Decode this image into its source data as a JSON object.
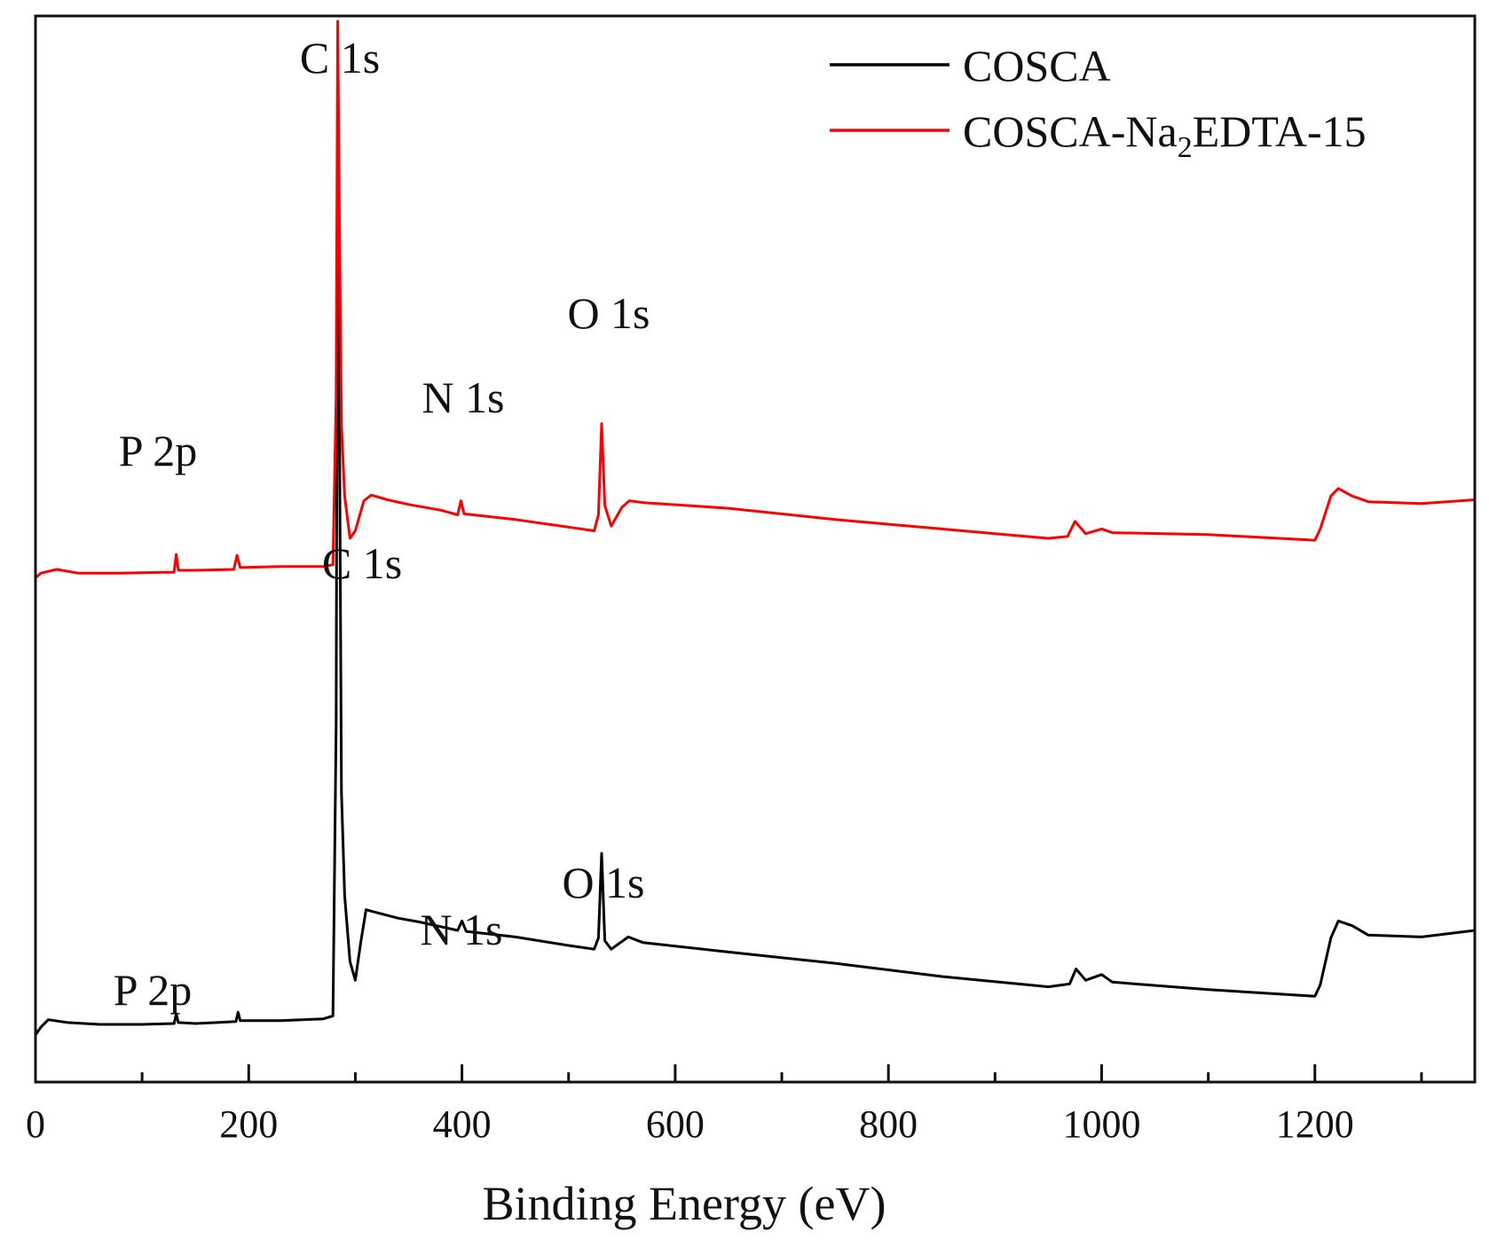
{
  "chart_data": {
    "type": "line",
    "title": "",
    "xlabel": "Binding Energy (eV)",
    "ylabel": "",
    "xlim": [
      0,
      1350
    ],
    "ylim": [
      0,
      100
    ],
    "x_ticks": [
      0,
      200,
      400,
      600,
      800,
      1000,
      1200
    ],
    "x_minor_ticks": [
      100,
      300,
      500,
      700,
      900,
      1100,
      1300
    ],
    "legend": {
      "position": "top-right",
      "entries": [
        {
          "name": "COSCA",
          "color": "#000000"
        },
        {
          "name_main": "COSCA-Na",
          "name_sub": "2",
          "name_rest": "EDTA-15",
          "color": "#ff0000"
        }
      ]
    },
    "series": [
      {
        "name": "COSCA",
        "color": "#000000",
        "points": [
          [
            0,
            2.2
          ],
          [
            5,
            3.0
          ],
          [
            12,
            3.8
          ],
          [
            30,
            3.5
          ],
          [
            60,
            3.3
          ],
          [
            100,
            3.3
          ],
          [
            130,
            3.4
          ],
          [
            132,
            4.4
          ],
          [
            134,
            3.5
          ],
          [
            150,
            3.4
          ],
          [
            188,
            3.6
          ],
          [
            190,
            4.6
          ],
          [
            192,
            3.7
          ],
          [
            230,
            3.7
          ],
          [
            270,
            3.9
          ],
          [
            279,
            4.2
          ],
          [
            282,
            35
          ],
          [
            283.5,
            96
          ],
          [
            285,
            70
          ],
          [
            287,
            28
          ],
          [
            290,
            17
          ],
          [
            295,
            10
          ],
          [
            300,
            8
          ],
          [
            305,
            12
          ],
          [
            310,
            15.5
          ],
          [
            320,
            15.2
          ],
          [
            340,
            14.6
          ],
          [
            360,
            14.2
          ],
          [
            380,
            13.7
          ],
          [
            396,
            13.3
          ],
          [
            400,
            14.3
          ],
          [
            404,
            13.2
          ],
          [
            450,
            12.6
          ],
          [
            500,
            11.7
          ],
          [
            524,
            11.3
          ],
          [
            528,
            12.5
          ],
          [
            531,
            21.5
          ],
          [
            534,
            12.2
          ],
          [
            540,
            11.3
          ],
          [
            556,
            12.6
          ],
          [
            570,
            12.0
          ],
          [
            650,
            11.0
          ],
          [
            750,
            9.8
          ],
          [
            850,
            8.4
          ],
          [
            950,
            7.3
          ],
          [
            970,
            7.6
          ],
          [
            976,
            9.2
          ],
          [
            985,
            8.0
          ],
          [
            1000,
            8.6
          ],
          [
            1010,
            7.8
          ],
          [
            1100,
            7.0
          ],
          [
            1200,
            6.3
          ],
          [
            1205,
            7.5
          ],
          [
            1215,
            12.5
          ],
          [
            1222,
            14.3
          ],
          [
            1235,
            13.8
          ],
          [
            1250,
            12.8
          ],
          [
            1300,
            12.6
          ],
          [
            1350,
            13.3
          ]
        ]
      },
      {
        "name": "COSCA-Na2EDTA-15",
        "color": "#ff0000",
        "points": [
          [
            0,
            50.8
          ],
          [
            5,
            51.3
          ],
          [
            20,
            51.7
          ],
          [
            40,
            51.3
          ],
          [
            80,
            51.3
          ],
          [
            120,
            51.4
          ],
          [
            130,
            51.4
          ],
          [
            132,
            53.3
          ],
          [
            134,
            51.6
          ],
          [
            150,
            51.6
          ],
          [
            186,
            51.7
          ],
          [
            189,
            53.2
          ],
          [
            192,
            51.9
          ],
          [
            230,
            52.0
          ],
          [
            270,
            52.0
          ],
          [
            279,
            52.2
          ],
          [
            282,
            70
          ],
          [
            283.5,
            110
          ],
          [
            285,
            90
          ],
          [
            287,
            67
          ],
          [
            290,
            59.5
          ],
          [
            295,
            55
          ],
          [
            300,
            55.8
          ],
          [
            308,
            59.0
          ],
          [
            315,
            59.6
          ],
          [
            330,
            59.1
          ],
          [
            350,
            58.6
          ],
          [
            380,
            58.0
          ],
          [
            396,
            57.5
          ],
          [
            399,
            59.0
          ],
          [
            402,
            57.6
          ],
          [
            450,
            57.0
          ],
          [
            500,
            56.2
          ],
          [
            524,
            55.8
          ],
          [
            528,
            57.5
          ],
          [
            531,
            67.2
          ],
          [
            534,
            58.5
          ],
          [
            540,
            56.3
          ],
          [
            550,
            58.3
          ],
          [
            557,
            59.0
          ],
          [
            570,
            58.8
          ],
          [
            650,
            58.2
          ],
          [
            750,
            57.0
          ],
          [
            850,
            56.0
          ],
          [
            950,
            55.0
          ],
          [
            968,
            55.2
          ],
          [
            975,
            56.8
          ],
          [
            985,
            55.5
          ],
          [
            1000,
            56.0
          ],
          [
            1010,
            55.6
          ],
          [
            1100,
            55.4
          ],
          [
            1200,
            54.8
          ],
          [
            1205,
            56.0
          ],
          [
            1215,
            59.5
          ],
          [
            1222,
            60.3
          ],
          [
            1235,
            59.5
          ],
          [
            1250,
            58.9
          ],
          [
            1300,
            58.7
          ],
          [
            1350,
            59.1
          ]
        ]
      }
    ],
    "annotations": [
      {
        "text": "C 1s",
        "series": "COSCA-Na2EDTA-15"
      },
      {
        "text": "O 1s",
        "series": "COSCA-Na2EDTA-15"
      },
      {
        "text": "N 1s",
        "series": "COSCA-Na2EDTA-15"
      },
      {
        "text": "P 2p",
        "series": "COSCA-Na2EDTA-15"
      },
      {
        "text": "C 1s",
        "series": "COSCA"
      },
      {
        "text": "O 1s",
        "series": "COSCA"
      },
      {
        "text": "N 1s",
        "series": "COSCA"
      },
      {
        "text": "P 2p",
        "series": "COSCA"
      }
    ]
  }
}
